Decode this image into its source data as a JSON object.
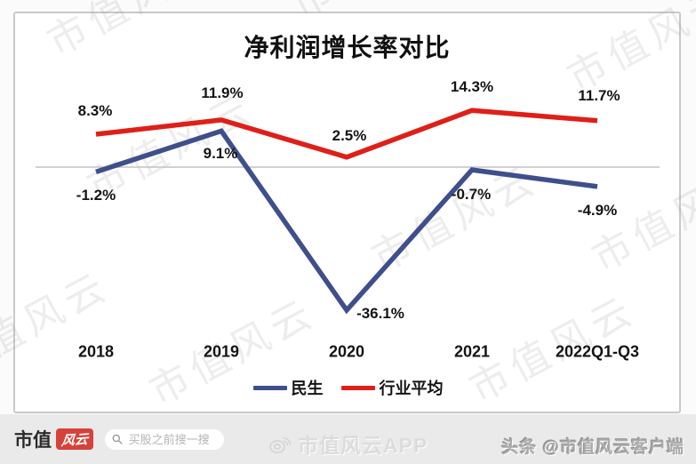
{
  "chart_data": {
    "type": "line",
    "title": "净利润增长率对比",
    "categories": [
      "2018",
      "2019",
      "2020",
      "2021",
      "2022Q1-Q3"
    ],
    "series": [
      {
        "name": "民生",
        "color": "#3f4f8c",
        "values": [
          -1.2,
          9.1,
          -36.1,
          -0.7,
          -4.9
        ],
        "labels": [
          "-1.2%",
          "9.1%",
          "-36.1%",
          "-0.7%",
          "-4.9%"
        ]
      },
      {
        "name": "行业平均",
        "color": "#df1f18",
        "values": [
          8.3,
          11.9,
          2.5,
          14.3,
          11.7
        ],
        "labels": [
          "8.3%",
          "11.9%",
          "2.5%",
          "14.3%",
          "11.7%"
        ]
      }
    ],
    "baseline": 0,
    "grid": "zero-line-only",
    "legend_position": "bottom"
  },
  "watermark": {
    "text": "市值风云"
  },
  "footer": {
    "brand_text": "市值",
    "brand_badge": "风云",
    "search_placeholder": "买股之前搜一搜",
    "center_watermark": "市值风云APP",
    "right_credit": "头条 @市值风云客户端"
  },
  "colors": {
    "series_minsheng": "#3f4f8c",
    "series_industry": "#df1f18",
    "logo_red": "#d5423a",
    "zero_line": "#c2c2c2",
    "footer_bg": "#eaeaea"
  }
}
